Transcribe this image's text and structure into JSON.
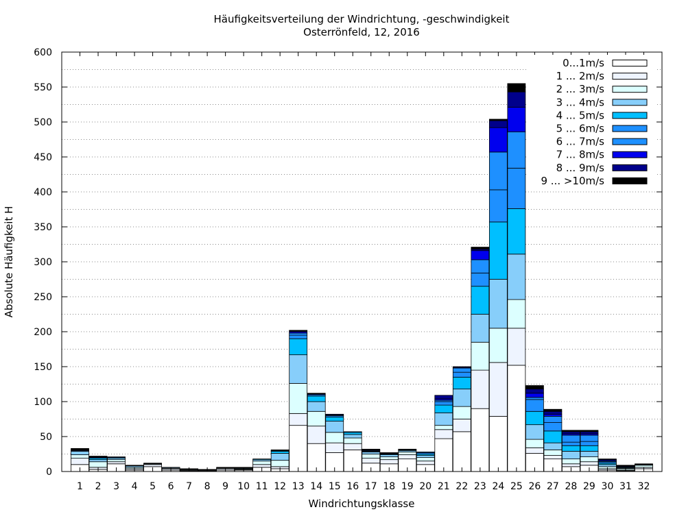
{
  "chart_data": {
    "type": "bar",
    "stacked": true,
    "title": "Häufigkeitsverteilung der Windrichtung, -geschwindigkeit",
    "subtitle": "Osterrönfeld, 12, 2016",
    "xlabel": "Windrichtungsklasse",
    "ylabel": "Absolute Häufigkeit H",
    "ylim": [
      0,
      600
    ],
    "yticks": [
      0,
      50,
      100,
      150,
      200,
      250,
      300,
      350,
      400,
      450,
      500,
      550,
      600
    ],
    "grid": true,
    "legend_position": "top-right",
    "categories": [
      "1",
      "2",
      "3",
      "4",
      "5",
      "6",
      "7",
      "8",
      "9",
      "10",
      "11",
      "12",
      "13",
      "14",
      "15",
      "16",
      "17",
      "18",
      "19",
      "20",
      "21",
      "22",
      "23",
      "24",
      "25",
      "26",
      "27",
      "28",
      "29",
      "30",
      "31",
      "32"
    ],
    "series": [
      {
        "name": "0...1m/s",
        "color": "#ffffff",
        "values": [
          10,
          3,
          11,
          2,
          7,
          2,
          1,
          1,
          2,
          2,
          6,
          4,
          66,
          40,
          27,
          31,
          12,
          11,
          18,
          10,
          47,
          57,
          90,
          79,
          152,
          26,
          18,
          7,
          9,
          2,
          1,
          4
        ]
      },
      {
        "name": "1 ... 2m/s",
        "color": "#eef4ff",
        "values": [
          9,
          3,
          3,
          2,
          3,
          2,
          1,
          1,
          2,
          1,
          4,
          3,
          17,
          25,
          14,
          9,
          7,
          6,
          6,
          5,
          13,
          18,
          55,
          77,
          53,
          8,
          5,
          4,
          5,
          2,
          1,
          2
        ]
      },
      {
        "name": "2 ... 3m/s",
        "color": "#dcffff",
        "values": [
          5,
          8,
          3,
          2,
          1,
          1,
          1,
          0,
          1,
          1,
          5,
          9,
          43,
          21,
          15,
          8,
          6,
          4,
          4,
          5,
          6,
          18,
          40,
          49,
          41,
          12,
          8,
          7,
          7,
          3,
          2,
          3
        ]
      },
      {
        "name": "3 ... 4m/s",
        "color": "#87cefa",
        "values": [
          5,
          3,
          2,
          2,
          0,
          1,
          0,
          0,
          0,
          1,
          2,
          10,
          41,
          14,
          16,
          5,
          3,
          3,
          2,
          3,
          18,
          25,
          40,
          70,
          65,
          21,
          10,
          11,
          8,
          3,
          1,
          1
        ]
      },
      {
        "name": "4 ... 5m/s",
        "color": "#00bfff",
        "values": [
          1,
          2,
          1,
          0,
          0,
          0,
          0,
          0,
          0,
          0,
          1,
          3,
          23,
          8,
          6,
          3,
          1,
          1,
          1,
          2,
          11,
          17,
          40,
          82,
          65,
          19,
          17,
          8,
          8,
          2,
          1,
          0
        ]
      },
      {
        "name": "5 ... 6m/s",
        "color": "#1e90ff",
        "values": [
          0,
          1,
          1,
          0,
          0,
          0,
          0,
          0,
          0,
          0,
          0,
          0,
          5,
          0,
          2,
          1,
          1,
          1,
          0,
          2,
          5,
          7,
          19,
          46,
          58,
          17,
          12,
          5,
          6,
          2,
          0,
          0
        ]
      },
      {
        "name": "6 ... 7m/s",
        "color": "#1e90ff",
        "values": [
          0,
          0,
          0,
          0,
          0,
          0,
          0,
          0,
          0,
          0,
          0,
          0,
          3,
          2,
          1,
          0,
          0,
          0,
          0,
          1,
          2,
          6,
          19,
          54,
          52,
          3,
          9,
          10,
          9,
          1,
          1,
          0
        ]
      },
      {
        "name": "7 ... 8m/s",
        "color": "#0000ee",
        "values": [
          0,
          0,
          0,
          0,
          0,
          0,
          0,
          0,
          0,
          0,
          0,
          0,
          2,
          1,
          0,
          0,
          0,
          0,
          0,
          0,
          2,
          1,
          13,
          35,
          35,
          6,
          3,
          2,
          2,
          0,
          0,
          0
        ]
      },
      {
        "name": "8 ... 9m/s",
        "color": "#00008b",
        "values": [
          1,
          1,
          0,
          0,
          0,
          0,
          0,
          0,
          0,
          0,
          0,
          1,
          1,
          0,
          1,
          0,
          1,
          0,
          0,
          0,
          5,
          1,
          2,
          10,
          22,
          6,
          4,
          3,
          3,
          2,
          1,
          0
        ]
      },
      {
        "name": "9 ... >10m/s",
        "color": "#000000",
        "values": [
          2,
          1,
          0,
          1,
          1,
          0,
          1,
          1,
          1,
          1,
          0,
          1,
          1,
          1,
          0,
          0,
          1,
          1,
          1,
          0,
          0,
          0,
          3,
          2,
          12,
          5,
          3,
          2,
          2,
          1,
          1,
          1
        ]
      }
    ]
  }
}
